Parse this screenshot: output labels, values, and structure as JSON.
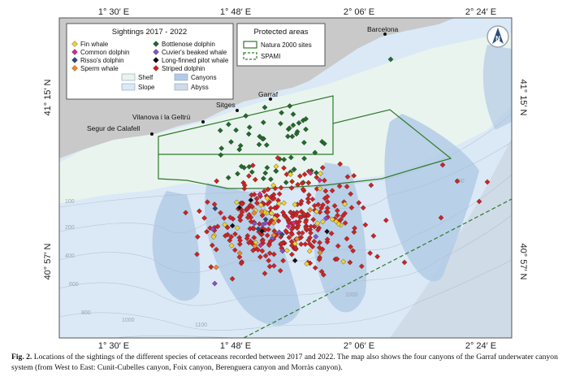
{
  "map": {
    "lon_ticks": [
      "1° 30′ E",
      "1° 48′ E",
      "2° 06′ E",
      "2° 24′ E"
    ],
    "lat_ticks": [
      "41° 15′ N",
      "40° 57′ N"
    ],
    "places": [
      "Barcelona",
      "Garraf",
      "Sitges",
      "Vilanova i la Geltrú",
      "Segur de Calafell"
    ],
    "depth_labels": [
      "100",
      "200",
      "400",
      "600",
      "800",
      "1000",
      "1100",
      "1000",
      "100"
    ],
    "colors": {
      "land": "#c9c9c9",
      "shelf": "#e9f4ef",
      "slope": "#dbe9f6",
      "canyons": "#b3cbe6",
      "abyss": "#cfdbe6",
      "natura": "#2f7a2a",
      "spami": "#2f7a2a"
    }
  },
  "legend_species": {
    "title": "Sightings 2017 - 2022",
    "items": [
      {
        "label": "Fin whale",
        "color": "#f2d232"
      },
      {
        "label": "Bottlenose dolphin",
        "color": "#1f6b2a"
      },
      {
        "label": "Common dolphin",
        "color": "#d6288f"
      },
      {
        "label": "Cuvier's beaked whale",
        "color": "#8a4fc9"
      },
      {
        "label": "Risso's dolphin",
        "color": "#2a4c7a"
      },
      {
        "label": "Long-finned pilot whale",
        "color": "#111111"
      },
      {
        "label": "Sperm whale",
        "color": "#f08a24"
      },
      {
        "label": "Striped dolphin",
        "color": "#d42020"
      }
    ],
    "zones": [
      {
        "label": "Shelf",
        "color": "#e9f4ef"
      },
      {
        "label": "Canyons",
        "color": "#b3cbe6"
      },
      {
        "label": "Slope",
        "color": "#dbe9f6"
      },
      {
        "label": "Abyss",
        "color": "#cfdbe6"
      }
    ]
  },
  "legend_protected": {
    "title": "Protected areas",
    "items": [
      {
        "label": "Natura 2000 sites",
        "style": "solid"
      },
      {
        "label": "SPAMI",
        "style": "dashed"
      }
    ]
  },
  "north_arrow": {
    "letter": "N"
  },
  "caption": {
    "label": "Fig. 2.",
    "text": "Locations of the sightings of the different species of cetaceans recorded between 2017 and 2022. The map also shows the four canyons of the Garraf underwater canyon system (from West to East: Cunit-Cubelles canyon, Foix canyon, Berenguera canyon and Morràs canyon)."
  }
}
